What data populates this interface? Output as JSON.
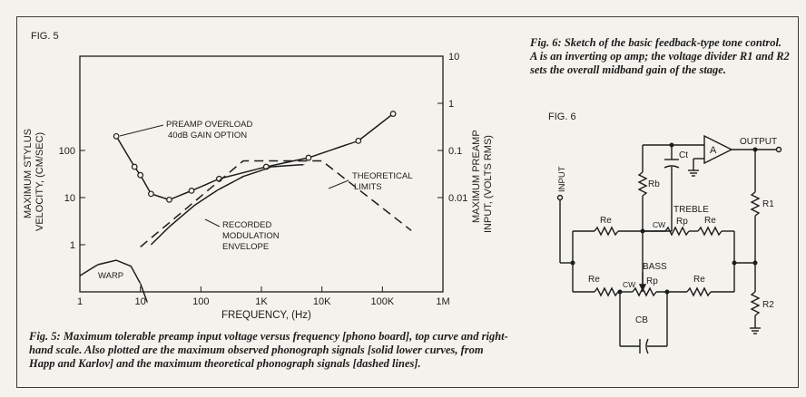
{
  "fig5": {
    "label": "FIG. 5",
    "y_left_label_1": "MAXIMUM STYLUS",
    "y_left_label_2": "VELOCITY, (CM/SEC)",
    "y_right_label_1": "MAXIMUM PREAMP",
    "y_right_label_2": "INPUT, (VOLTS RMS)",
    "x_label": "FREQUENCY, (Hz)",
    "ann_overload_1": "PREAMP OVERLOAD",
    "ann_overload_2": "40dB GAIN OPTION",
    "ann_theoretical_1": "THEORETICAL",
    "ann_theoretical_2": "LIMITS",
    "ann_recorded_1": "RECORDED",
    "ann_recorded_2": "MODULATION",
    "ann_recorded_3": "ENVELOPE",
    "ann_warp": "WARP",
    "caption": "Fig. 5: Maximum tolerable preamp input voltage versus frequency [phono board], top curve and right-hand scale. Also plotted are the maximum observed phonograph signals [solid lower curves, from Happ and Karlov] and the maximum theoretical phonograph signals [dashed lines]."
  },
  "chart_data": {
    "type": "line",
    "x_scale": "log",
    "xlim": [
      1,
      1000000
    ],
    "x_ticks": [
      "1",
      "10",
      "100",
      "1K",
      "10K",
      "100K",
      "1M"
    ],
    "y_left_scale": "log",
    "y_left_ticks": [
      "1",
      "10",
      "100"
    ],
    "y_right_ticks": [
      "10",
      "1",
      "0.1",
      "0.01"
    ],
    "grid": false,
    "series": [
      {
        "role": "preamp-overload",
        "style": "solid-with-markers",
        "x": [
          4,
          8,
          10,
          15,
          30,
          70,
          200,
          1200,
          6000,
          40000,
          150000
        ],
        "y": [
          200,
          45,
          30,
          12,
          9,
          14,
          25,
          45,
          70,
          160,
          600
        ]
      },
      {
        "role": "recorded-envelope",
        "style": "solid",
        "x": [
          15,
          30,
          80,
          200,
          500,
          1500,
          5000
        ],
        "y": [
          1,
          2.4,
          7,
          15,
          28,
          45,
          50
        ]
      },
      {
        "role": "warp",
        "style": "solid",
        "x": [
          1,
          2,
          4,
          7,
          10,
          13
        ],
        "y": [
          0.22,
          0.38,
          0.47,
          0.35,
          0.15,
          0.06
        ]
      },
      {
        "role": "theoretical-limits",
        "style": "dashed",
        "x": [
          10,
          500,
          10000,
          300000
        ],
        "y": [
          0.9,
          60,
          60,
          2
        ]
      }
    ]
  },
  "fig6": {
    "label": "FIG. 6",
    "caption": "Fig. 6: Sketch of the basic feedback-type tone control. A is an inverting op amp; the voltage divider R1 and R2 sets the overall midband gain of the stage.",
    "input": "INPUT",
    "output": "OUTPUT",
    "amp": "A",
    "ct": "Ct",
    "rb": "Rb",
    "treble": "TREBLE",
    "bass": "BASS",
    "re": "Re",
    "rp": "Rp",
    "cw": "CW",
    "r1": "R1",
    "r2": "R2",
    "cb": "CB"
  }
}
